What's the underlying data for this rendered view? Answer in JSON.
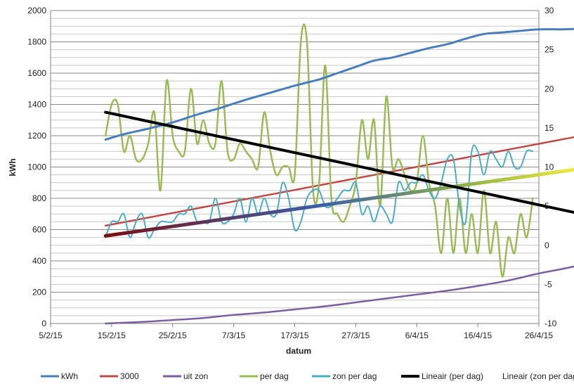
{
  "chart_data": {
    "type": "line",
    "xlabel": "datum",
    "ylabel": "kWh",
    "y2label": "",
    "x_ticks": [
      "5/2/15",
      "15/2/15",
      "25/2/15",
      "7/3/15",
      "17/3/15",
      "27/3/15",
      "6/4/15",
      "16/4/15",
      "26/4/15"
    ],
    "x_tick_days": [
      0,
      10,
      20,
      30,
      40,
      50,
      60,
      70,
      80
    ],
    "y_ticks": [
      "0",
      "200",
      "400",
      "600",
      "800",
      "1000",
      "1200",
      "1400",
      "1600",
      "1800",
      "2000"
    ],
    "y2_ticks": [
      "-10",
      "-5",
      "0",
      "5",
      "10",
      "15",
      "20",
      "25",
      "30"
    ],
    "ylim": [
      0,
      2000
    ],
    "y2lim": [
      -10,
      30
    ],
    "xlim_days": [
      0,
      80
    ],
    "grid": "horizontal",
    "legend_position": "bottom",
    "series": [
      {
        "name": "kWh",
        "color": "#4a7ebb",
        "axis": "left",
        "width": 3,
        "points": [
          [
            9,
            1175
          ],
          [
            12,
            1210
          ],
          [
            16,
            1245
          ],
          [
            20,
            1285
          ],
          [
            24,
            1335
          ],
          [
            28,
            1380
          ],
          [
            32,
            1430
          ],
          [
            36,
            1475
          ],
          [
            40,
            1520
          ],
          [
            44,
            1560
          ],
          [
            47,
            1600
          ],
          [
            50,
            1640
          ],
          [
            53,
            1680
          ],
          [
            56,
            1700
          ],
          [
            59,
            1730
          ],
          [
            62,
            1760
          ],
          [
            65,
            1785
          ],
          [
            68,
            1820
          ],
          [
            71,
            1850
          ],
          [
            74,
            1860
          ],
          [
            77,
            1870
          ],
          [
            80,
            1880
          ],
          [
            84,
            1880
          ],
          [
            87,
            1885
          ]
        ]
      },
      {
        "name": "3000",
        "color": "#be4b48",
        "axis": "left",
        "width": 2.5,
        "points": [
          [
            9,
            625
          ],
          [
            87,
            1200
          ]
        ]
      },
      {
        "name": "uit zon",
        "color": "#7d5fa0",
        "axis": "left",
        "width": 2.5,
        "points": [
          [
            9,
            0
          ],
          [
            15,
            10
          ],
          [
            20,
            22
          ],
          [
            25,
            35
          ],
          [
            30,
            55
          ],
          [
            35,
            70
          ],
          [
            40,
            90
          ],
          [
            45,
            110
          ],
          [
            50,
            135
          ],
          [
            55,
            160
          ],
          [
            60,
            185
          ],
          [
            65,
            210
          ],
          [
            70,
            240
          ],
          [
            75,
            275
          ],
          [
            80,
            320
          ],
          [
            84,
            350
          ],
          [
            87,
            375
          ]
        ]
      },
      {
        "name": "per dag",
        "color": "#9bbb59",
        "axis": "right",
        "width": 2.5,
        "points": [
          [
            9,
            14
          ],
          [
            10,
            18
          ],
          [
            11,
            18
          ],
          [
            12,
            12
          ],
          [
            13,
            14
          ],
          [
            14,
            11
          ],
          [
            15,
            11
          ],
          [
            16,
            13
          ],
          [
            17,
            17
          ],
          [
            18,
            7
          ],
          [
            19,
            21
          ],
          [
            20,
            14
          ],
          [
            21,
            12
          ],
          [
            22,
            12
          ],
          [
            23,
            20
          ],
          [
            24,
            13
          ],
          [
            25,
            16
          ],
          [
            26,
            13
          ],
          [
            27,
            13
          ],
          [
            28,
            21
          ],
          [
            29,
            12
          ],
          [
            30,
            11
          ],
          [
            31,
            13
          ],
          [
            32,
            12
          ],
          [
            33,
            11
          ],
          [
            34,
            10
          ],
          [
            35,
            17
          ],
          [
            36,
            12
          ],
          [
            37,
            9
          ],
          [
            38,
            10
          ],
          [
            39,
            10
          ],
          [
            40,
            9
          ],
          [
            41,
            26
          ],
          [
            42,
            26
          ],
          [
            43,
            7
          ],
          [
            44,
            8
          ],
          [
            45,
            23
          ],
          [
            46,
            6
          ],
          [
            47,
            4
          ],
          [
            48,
            3
          ],
          [
            49,
            5
          ],
          [
            50,
            8
          ],
          [
            51,
            16
          ],
          [
            52,
            11
          ],
          [
            53,
            16
          ],
          [
            54,
            5
          ],
          [
            55,
            19
          ],
          [
            56,
            10
          ],
          [
            57,
            11
          ],
          [
            58,
            9
          ],
          [
            59,
            7
          ],
          [
            60,
            8
          ],
          [
            61,
            14
          ],
          [
            62,
            8
          ],
          [
            63,
            5
          ],
          [
            64,
            -1
          ],
          [
            65,
            6
          ],
          [
            66,
            -1
          ],
          [
            67,
            6
          ],
          [
            68,
            -1
          ],
          [
            69,
            4
          ],
          [
            70,
            -1
          ],
          [
            71,
            7
          ],
          [
            72,
            -1
          ],
          [
            73,
            3
          ],
          [
            74,
            -4
          ],
          [
            75,
            1
          ],
          [
            76,
            -1
          ],
          [
            77,
            4
          ],
          [
            78,
            1
          ],
          [
            79,
            6
          ]
        ]
      },
      {
        "name": "zon per dag",
        "color": "#4bacc6",
        "axis": "right",
        "width": 2,
        "points": [
          [
            9,
            1
          ],
          [
            10,
            3
          ],
          [
            11,
            3
          ],
          [
            12,
            4
          ],
          [
            13,
            1
          ],
          [
            14,
            3
          ],
          [
            15,
            4
          ],
          [
            16,
            1
          ],
          [
            17,
            2
          ],
          [
            18,
            3
          ],
          [
            19,
            3
          ],
          [
            20,
            3
          ],
          [
            21,
            4
          ],
          [
            22,
            4
          ],
          [
            23,
            5
          ],
          [
            24,
            3
          ],
          [
            25,
            3
          ],
          [
            26,
            3
          ],
          [
            27,
            6
          ],
          [
            28,
            3
          ],
          [
            29,
            3
          ],
          [
            30,
            4
          ],
          [
            31,
            6
          ],
          [
            32,
            3
          ],
          [
            33,
            6
          ],
          [
            34,
            4
          ],
          [
            35,
            6
          ],
          [
            36,
            4
          ],
          [
            37,
            4
          ],
          [
            38,
            8
          ],
          [
            39,
            6
          ],
          [
            40,
            2
          ],
          [
            41,
            3
          ],
          [
            42,
            6
          ],
          [
            43,
            7
          ],
          [
            44,
            7
          ],
          [
            45,
            5
          ],
          [
            46,
            5
          ],
          [
            47,
            6
          ],
          [
            48,
            7
          ],
          [
            49,
            7
          ],
          [
            50,
            8
          ],
          [
            51,
            4
          ],
          [
            52,
            5
          ],
          [
            53,
            3
          ],
          [
            54,
            5
          ],
          [
            55,
            4
          ],
          [
            56,
            3
          ],
          [
            57,
            8
          ],
          [
            58,
            7
          ],
          [
            59,
            8
          ],
          [
            60,
            8
          ],
          [
            61,
            9
          ],
          [
            62,
            7
          ],
          [
            63,
            6
          ],
          [
            64,
            8
          ],
          [
            65,
            11
          ],
          [
            66,
            11
          ],
          [
            67,
            5
          ],
          [
            68,
            3
          ],
          [
            69,
            12
          ],
          [
            70,
            12
          ],
          [
            71,
            9
          ],
          [
            72,
            12
          ],
          [
            73,
            11
          ],
          [
            74,
            10
          ],
          [
            75,
            12
          ],
          [
            76,
            10
          ],
          [
            77,
            10
          ],
          [
            78,
            12
          ],
          [
            79,
            12
          ]
        ]
      },
      {
        "name": "Lineair (per dag)",
        "color": "#000000",
        "axis": "right",
        "width": 4,
        "points": [
          [
            9,
            17
          ],
          [
            87,
            4
          ]
        ]
      },
      {
        "name": "Lineair (zon per dag)",
        "color": "#f5ee3a",
        "axis": "right",
        "width": 5,
        "gradient_from": "#7b1010",
        "points": [
          [
            9,
            1.2
          ],
          [
            87,
            9.8
          ]
        ]
      }
    ]
  }
}
